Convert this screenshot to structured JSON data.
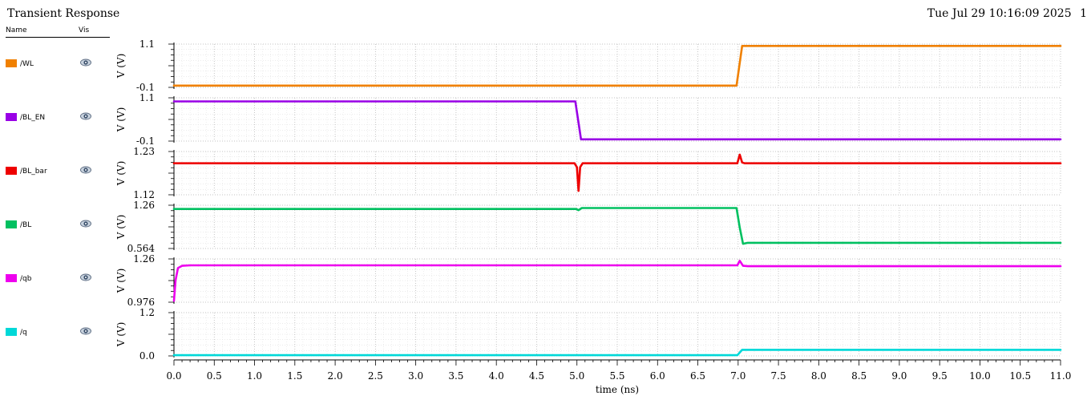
{
  "window": {
    "title": "Transient Response",
    "datetime": "Tue Jul 29 10:16:09 2025",
    "page_number": "1"
  },
  "legend": {
    "name_header": "Name",
    "vis_header": "Vis",
    "items": [
      {
        "label": "/WL",
        "color": "#f08000",
        "visible_icon": "eye-icon"
      },
      {
        "label": "/BL_EN",
        "color": "#9900e6",
        "visible_icon": "eye-icon"
      },
      {
        "label": "/BL_bar",
        "color": "#ee0000",
        "visible_icon": "eye-icon"
      },
      {
        "label": "/BL",
        "color": "#00c060",
        "visible_icon": "eye-icon"
      },
      {
        "label": "/qb",
        "color": "#ee00ee",
        "visible_icon": "eye-icon"
      },
      {
        "label": "/q",
        "color": "#00d8d8",
        "visible_icon": "eye-icon"
      }
    ]
  },
  "chart_data": {
    "type": "line",
    "xlabel": "time (ns)",
    "xlim": [
      0.0,
      11.0
    ],
    "xticks": [
      "0.0",
      "0.5",
      "1.0",
      "1.5",
      "2.0",
      "2.5",
      "3.0",
      "3.5",
      "4.0",
      "4.5",
      "5.0",
      "5.5",
      "6.0",
      "6.5",
      "7.0",
      "7.5",
      "8.0",
      "8.5",
      "9.0",
      "9.5",
      "10.0",
      "10.5",
      "11.0"
    ],
    "grid": true,
    "panels": [
      {
        "name": "/WL",
        "color": "#f08000",
        "ylabel": "V (V)",
        "ylim": [
          -0.1,
          1.1
        ],
        "yticks": [
          {
            "value": 1.1,
            "label": "1.1"
          },
          {
            "value": -0.1,
            "label": "-0.1"
          }
        ],
        "points": [
          [
            0.0,
            -0.05
          ],
          [
            6.98,
            -0.05
          ],
          [
            7.05,
            1.05
          ],
          [
            11.0,
            1.05
          ]
        ]
      },
      {
        "name": "/BL_EN",
        "color": "#9900e6",
        "ylabel": "V (V)",
        "ylim": [
          -0.1,
          1.1
        ],
        "yticks": [
          {
            "value": 1.1,
            "label": "1.1"
          },
          {
            "value": -0.1,
            "label": "-0.1"
          }
        ],
        "points": [
          [
            0.0,
            1.0
          ],
          [
            4.98,
            1.0
          ],
          [
            5.05,
            -0.05
          ],
          [
            11.0,
            -0.05
          ]
        ]
      },
      {
        "name": "/BL_bar",
        "color": "#ee0000",
        "ylabel": "V (V)",
        "ylim": [
          1.12,
          1.23
        ],
        "yticks": [
          {
            "value": 1.23,
            "label": "1.23"
          },
          {
            "value": 1.12,
            "label": "1.12"
          }
        ],
        "points": [
          [
            0.0,
            1.2
          ],
          [
            4.97,
            1.2
          ],
          [
            5.0,
            1.19
          ],
          [
            5.02,
            1.13
          ],
          [
            5.04,
            1.19
          ],
          [
            5.07,
            1.2
          ],
          [
            6.99,
            1.2
          ],
          [
            7.02,
            1.222
          ],
          [
            7.05,
            1.202
          ],
          [
            7.08,
            1.2
          ],
          [
            11.0,
            1.2
          ]
        ]
      },
      {
        "name": "/BL",
        "color": "#00c060",
        "ylabel": "V (V)",
        "ylim": [
          0.564,
          1.26
        ],
        "yticks": [
          {
            "value": 1.26,
            "label": "1.26"
          },
          {
            "value": 0.564,
            "label": "0.564"
          }
        ],
        "points": [
          [
            0.0,
            1.2
          ],
          [
            4.99,
            1.2
          ],
          [
            5.02,
            1.18
          ],
          [
            5.06,
            1.215
          ],
          [
            6.98,
            1.215
          ],
          [
            7.02,
            0.9
          ],
          [
            7.06,
            0.64
          ],
          [
            7.12,
            0.655
          ],
          [
            11.0,
            0.655
          ]
        ]
      },
      {
        "name": "/qb",
        "color": "#ee00ee",
        "ylabel": "V (V)",
        "ylim": [
          0.976,
          1.26
        ],
        "yticks": [
          {
            "value": 1.26,
            "label": "1.26"
          },
          {
            "value": 0.976,
            "label": "0.976"
          }
        ],
        "points": [
          [
            0.0,
            0.985
          ],
          [
            0.02,
            1.12
          ],
          [
            0.05,
            1.2
          ],
          [
            0.1,
            1.215
          ],
          [
            0.2,
            1.218
          ],
          [
            6.99,
            1.218
          ],
          [
            7.02,
            1.248
          ],
          [
            7.06,
            1.215
          ],
          [
            7.12,
            1.212
          ],
          [
            11.0,
            1.212
          ]
        ]
      },
      {
        "name": "/q",
        "color": "#00d8d8",
        "ylabel": "V (V)",
        "ylim": [
          0.0,
          1.2
        ],
        "yticks": [
          {
            "value": 1.2,
            "label": "1.2"
          },
          {
            "value": 0.0,
            "label": "0.0"
          }
        ],
        "points": [
          [
            0.0,
            0.02
          ],
          [
            6.99,
            0.02
          ],
          [
            7.05,
            0.17
          ],
          [
            11.0,
            0.17
          ]
        ]
      }
    ]
  }
}
